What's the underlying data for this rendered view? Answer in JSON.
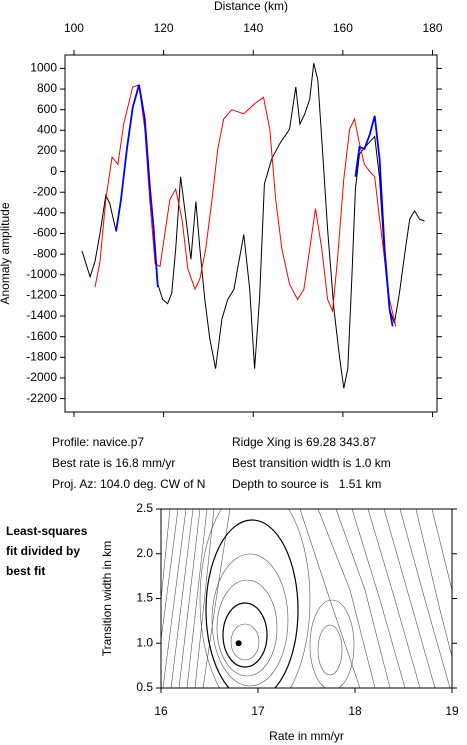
{
  "chart_data": [
    {
      "type": "line",
      "xlabel": "Distance (km)",
      "ylabel": "Anomaly amplitude",
      "xlim": [
        98,
        181
      ],
      "xticks": [
        100,
        120,
        140,
        160,
        180
      ],
      "ylim": [
        -2330,
        1130
      ],
      "yticks": [
        -2200,
        -2000,
        -1800,
        -1600,
        -1400,
        -1200,
        -1000,
        -800,
        -600,
        -400,
        -200,
        0,
        200,
        400,
        600,
        800,
        1000
      ],
      "series": [
        {
          "color": "#000000",
          "x": [
            101.8,
            103.6,
            104.7,
            105.8,
            107.1,
            108.0,
            109.4,
            110.5,
            111.8,
            113.1,
            114.5,
            115.8,
            116.9,
            117.8,
            118.7,
            119.8,
            120.9,
            121.8,
            122.7,
            123.8,
            125.0,
            126.1,
            127.2,
            128.1,
            129.2,
            130.3,
            131.6,
            133.0,
            134.3,
            135.7,
            136.5,
            137.9,
            139.2,
            140.3,
            141.4,
            142.5,
            144.1,
            145.9,
            148.1,
            149.5,
            150.4,
            151.5,
            152.6,
            153.5,
            154.4,
            155.3,
            156.6,
            158.0,
            159.3,
            160.2,
            161.1,
            162.0,
            162.8,
            163.7,
            164.8,
            166.0,
            167.1,
            168.2,
            169.3,
            170.4,
            171.5,
            172.6,
            173.8,
            174.9,
            176.0,
            177.1,
            178.2
          ],
          "values": [
            -770,
            -1020,
            -870,
            -600,
            -230,
            -310,
            -580,
            -270,
            220,
            620,
            840,
            510,
            -130,
            -560,
            -1090,
            -1240,
            -1280,
            -1180,
            -750,
            -50,
            -460,
            -850,
            -290,
            -750,
            -1240,
            -1620,
            -1910,
            -1430,
            -1240,
            -1140,
            -940,
            -610,
            -1140,
            -1910,
            -1240,
            -120,
            120,
            270,
            410,
            820,
            460,
            560,
            700,
            1050,
            890,
            310,
            -560,
            -1330,
            -1810,
            -2100,
            -1910,
            -1040,
            -170,
            170,
            230,
            290,
            340,
            -70,
            -850,
            -1330,
            -1470,
            -1180,
            -800,
            -460,
            -380,
            -460,
            -480
          ]
        },
        {
          "color": "#ff0000",
          "x": [
            104.7,
            105.8,
            107.1,
            108.5,
            109.8,
            111.1,
            113.1,
            114.5,
            115.8,
            116.9,
            118.1,
            119.2,
            120.1,
            121.4,
            122.7,
            124.1,
            125.4,
            127.0,
            128.1,
            129.4,
            130.8,
            132.1,
            133.4,
            135.2,
            137.9,
            140.1,
            142.3,
            143.7,
            145.0,
            146.4,
            148.1,
            149.9,
            151.3,
            152.6,
            153.9,
            155.3,
            156.6,
            157.7,
            158.8,
            160.2,
            161.5,
            162.6,
            163.7,
            164.8,
            166.0,
            167.1,
            168.2,
            169.3,
            170.4,
            171.8
          ],
          "values": [
            -1120,
            -870,
            -270,
            140,
            70,
            460,
            820,
            840,
            410,
            -270,
            -890,
            -920,
            -650,
            -270,
            -170,
            -460,
            -940,
            -1140,
            -1040,
            -750,
            -270,
            220,
            510,
            600,
            560,
            650,
            720,
            410,
            -270,
            -750,
            -1090,
            -1240,
            -1140,
            -750,
            -360,
            -750,
            -1240,
            -1350,
            -850,
            -70,
            410,
            510,
            270,
            70,
            0,
            -50,
            -460,
            -850,
            -1240,
            -1500
          ]
        },
        {
          "color": "#0000ff",
          "x": [
            109.4,
            110.5,
            111.8,
            113.1,
            114.5,
            115.8,
            116.9,
            117.8,
            118.7,
            null,
            162.8,
            163.7,
            164.8,
            166.0,
            167.1,
            168.2,
            169.3,
            170.4,
            171.1
          ],
          "values": [
            -580,
            -270,
            220,
            620,
            840,
            510,
            -130,
            -560,
            -1120,
            null,
            -50,
            240,
            220,
            360,
            540,
            120,
            -750,
            -1330,
            -1500
          ]
        }
      ]
    },
    {
      "type": "contour",
      "xlabel": "Rate in mm/yr",
      "ylabel": "Transition width in km",
      "note": [
        "Least-squares",
        "fit divided by",
        "best fit"
      ],
      "xlim": [
        16,
        19
      ],
      "xticks": [
        16,
        17,
        18,
        19
      ],
      "ylim": [
        0.5,
        2.5
      ],
      "yticks": [
        {
          "value": 0.5,
          "label": "0.5"
        },
        {
          "value": 1,
          "label": "1.0"
        },
        {
          "value": 1.5,
          "label": "1.5"
        },
        {
          "value": 2,
          "label": "2.0"
        },
        {
          "value": 2.5,
          "label": "2.5"
        }
      ],
      "x": [
        16.8
      ],
      "values": [
        1.0
      ]
    }
  ],
  "info": {
    "left": [
      "Profile: navice.p7",
      "Best rate is 16.8 mm/yr",
      "Proj. Az: 104.0 deg. CW of N"
    ],
    "right": [
      "Ridge Xing is 69.28 343.87",
      "Best transition width is 1.0 km",
      "Depth to source is   1.51 km"
    ]
  }
}
